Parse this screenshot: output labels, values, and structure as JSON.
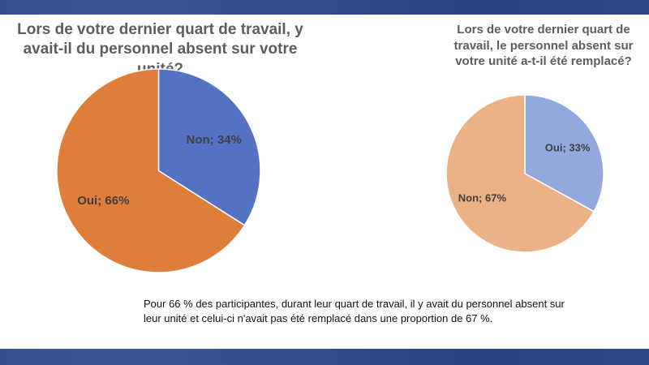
{
  "chart_data": [
    {
      "type": "pie",
      "title": "Lors de votre dernier quart de travail, y avait-il du personnel absent sur votre unité?",
      "slices": [
        {
          "label": "Non",
          "value": 34,
          "text": "Non; 34%",
          "color": "#5472c4"
        },
        {
          "label": "Oui",
          "value": 66,
          "text": "Oui; 66%",
          "color": "#dd7f3b"
        }
      ]
    },
    {
      "type": "pie",
      "title": "Lors de votre dernier quart de travail, le personnel absent sur votre unité a-t-il été remplacé?",
      "slices": [
        {
          "label": "Oui",
          "value": 33,
          "text": "Oui; 33%",
          "color": "#93a9dd"
        },
        {
          "label": "Non",
          "value": 67,
          "text": "Non; 67%",
          "color": "#ebb187"
        }
      ]
    }
  ],
  "caption": "Pour 66 % des participantes, durant leur quart de travail, il y avait du personnel absent sur leur unité et celui-ci n'avait pas été remplacé dans une proportion de 67 %.",
  "theme": {
    "band_color": "#2f4a8f",
    "title_color": "#5d5d5d"
  }
}
